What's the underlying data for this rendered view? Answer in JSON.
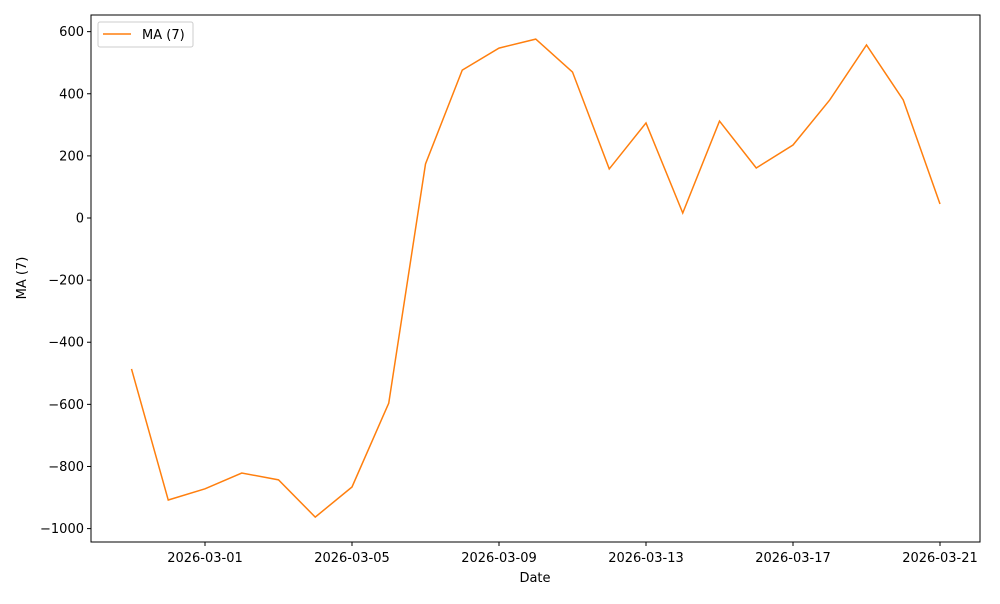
{
  "chart_data": {
    "type": "line",
    "title": "",
    "xlabel": "Date",
    "ylabel": "MA (7)",
    "ylim": [
      -1040,
      655
    ],
    "xlim": [
      "2026-02-25T22:55",
      "2026-03-22T02:00"
    ],
    "grid": false,
    "legend": {
      "position": "top-left",
      "entries": [
        "MA (7)"
      ]
    },
    "x_ticks": [
      "2026-03-01",
      "2026-03-05",
      "2026-03-09",
      "2026-03-13",
      "2026-03-17",
      "2026-03-21"
    ],
    "y_ticks": [
      -1000,
      -800,
      -600,
      -400,
      -200,
      0,
      200,
      400,
      600
    ],
    "y_tick_labels": [
      "−1000",
      "−800",
      "−600",
      "−400",
      "−200",
      "0",
      "200",
      "400",
      "600"
    ],
    "series": [
      {
        "name": "MA (7)",
        "color": "#ff7f0e",
        "x": [
          "2026-02-27",
          "2026-02-28",
          "2026-03-01",
          "2026-03-02",
          "2026-03-03",
          "2026-03-04",
          "2026-03-05",
          "2026-03-06",
          "2026-03-07",
          "2026-03-08",
          "2026-03-09",
          "2026-03-10",
          "2026-03-11",
          "2026-03-12",
          "2026-03-13",
          "2026-03-14",
          "2026-03-15",
          "2026-03-16",
          "2026-03-17",
          "2026-03-18",
          "2026-03-19",
          "2026-03-20",
          "2026-03-21"
        ],
        "values": [
          -486,
          -908,
          -872,
          -821,
          -843,
          -963,
          -866,
          -596,
          174,
          476,
          547,
          576,
          470,
          158,
          306,
          16,
          312,
          161,
          235,
          380,
          557,
          380,
          45
        ]
      }
    ]
  }
}
